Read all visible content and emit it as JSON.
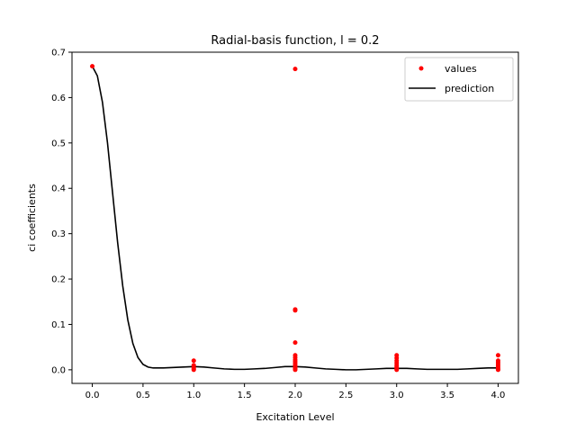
{
  "chart_data": {
    "type": "scatter",
    "title": "Radial-basis function, l = 0.2",
    "xlabel": "Excitation Level",
    "ylabel": "ci coefficients",
    "xlim": [
      -0.2,
      4.2
    ],
    "ylim": [
      -0.03,
      0.7
    ],
    "xticks": [
      0.0,
      0.5,
      1.0,
      1.5,
      2.0,
      2.5,
      3.0,
      3.5,
      4.0
    ],
    "xtick_labels": [
      "0.0",
      "0.5",
      "1.0",
      "1.5",
      "2.0",
      "2.5",
      "3.0",
      "3.5",
      "4.0"
    ],
    "yticks": [
      0.0,
      0.1,
      0.2,
      0.3,
      0.4,
      0.5,
      0.6,
      0.7
    ],
    "ytick_labels": [
      "0.0",
      "0.1",
      "0.2",
      "0.3",
      "0.4",
      "0.5",
      "0.6",
      "0.7"
    ],
    "legend_position": "top-right",
    "grid": false,
    "series": [
      {
        "name": "values",
        "kind": "scatter",
        "color": "#ff0000",
        "points": [
          [
            0,
            0.669
          ],
          [
            1,
            0.02
          ],
          [
            1,
            0.01
          ],
          [
            1,
            0.005
          ],
          [
            1,
            0.002
          ],
          [
            1,
            0.0
          ],
          [
            2,
            0.663
          ],
          [
            2,
            0.133
          ],
          [
            2,
            0.131
          ],
          [
            2,
            0.06
          ],
          [
            2,
            0.032
          ],
          [
            2,
            0.027
          ],
          [
            2,
            0.022
          ],
          [
            2,
            0.018
          ],
          [
            2,
            0.014
          ],
          [
            2,
            0.01
          ],
          [
            2,
            0.007
          ],
          [
            2,
            0.004
          ],
          [
            2,
            0.002
          ],
          [
            2,
            0.0
          ],
          [
            3,
            0.032
          ],
          [
            3,
            0.026
          ],
          [
            3,
            0.02
          ],
          [
            3,
            0.015
          ],
          [
            3,
            0.01
          ],
          [
            3,
            0.006
          ],
          [
            3,
            0.003
          ],
          [
            3,
            0.0
          ],
          [
            4,
            0.032
          ],
          [
            4,
            0.02
          ],
          [
            4,
            0.016
          ],
          [
            4,
            0.012
          ],
          [
            4,
            0.008
          ],
          [
            4,
            0.004
          ],
          [
            4,
            0.001
          ],
          [
            4,
            0.0
          ]
        ]
      },
      {
        "name": "prediction",
        "kind": "line",
        "color": "#000000",
        "points": [
          [
            0.0,
            0.669
          ],
          [
            0.05,
            0.648
          ],
          [
            0.1,
            0.59
          ],
          [
            0.15,
            0.5
          ],
          [
            0.2,
            0.39
          ],
          [
            0.25,
            0.28
          ],
          [
            0.3,
            0.185
          ],
          [
            0.35,
            0.11
          ],
          [
            0.4,
            0.058
          ],
          [
            0.45,
            0.027
          ],
          [
            0.5,
            0.012
          ],
          [
            0.55,
            0.006
          ],
          [
            0.6,
            0.004
          ],
          [
            0.7,
            0.004
          ],
          [
            0.8,
            0.005
          ],
          [
            0.9,
            0.006
          ],
          [
            1.0,
            0.007
          ],
          [
            1.1,
            0.006
          ],
          [
            1.2,
            0.004
          ],
          [
            1.3,
            0.002
          ],
          [
            1.4,
            0.001
          ],
          [
            1.5,
            0.001
          ],
          [
            1.6,
            0.002
          ],
          [
            1.7,
            0.003
          ],
          [
            1.8,
            0.005
          ],
          [
            1.9,
            0.007
          ],
          [
            2.0,
            0.007
          ],
          [
            2.1,
            0.006
          ],
          [
            2.2,
            0.004
          ],
          [
            2.3,
            0.002
          ],
          [
            2.4,
            0.001
          ],
          [
            2.5,
            0.0
          ],
          [
            2.6,
            0.0
          ],
          [
            2.7,
            0.001
          ],
          [
            2.8,
            0.002
          ],
          [
            2.9,
            0.003
          ],
          [
            3.0,
            0.003
          ],
          [
            3.1,
            0.003
          ],
          [
            3.2,
            0.002
          ],
          [
            3.3,
            0.001
          ],
          [
            3.4,
            0.001
          ],
          [
            3.5,
            0.001
          ],
          [
            3.6,
            0.001
          ],
          [
            3.7,
            0.002
          ],
          [
            3.8,
            0.003
          ],
          [
            3.9,
            0.004
          ],
          [
            4.0,
            0.004
          ]
        ]
      }
    ]
  }
}
